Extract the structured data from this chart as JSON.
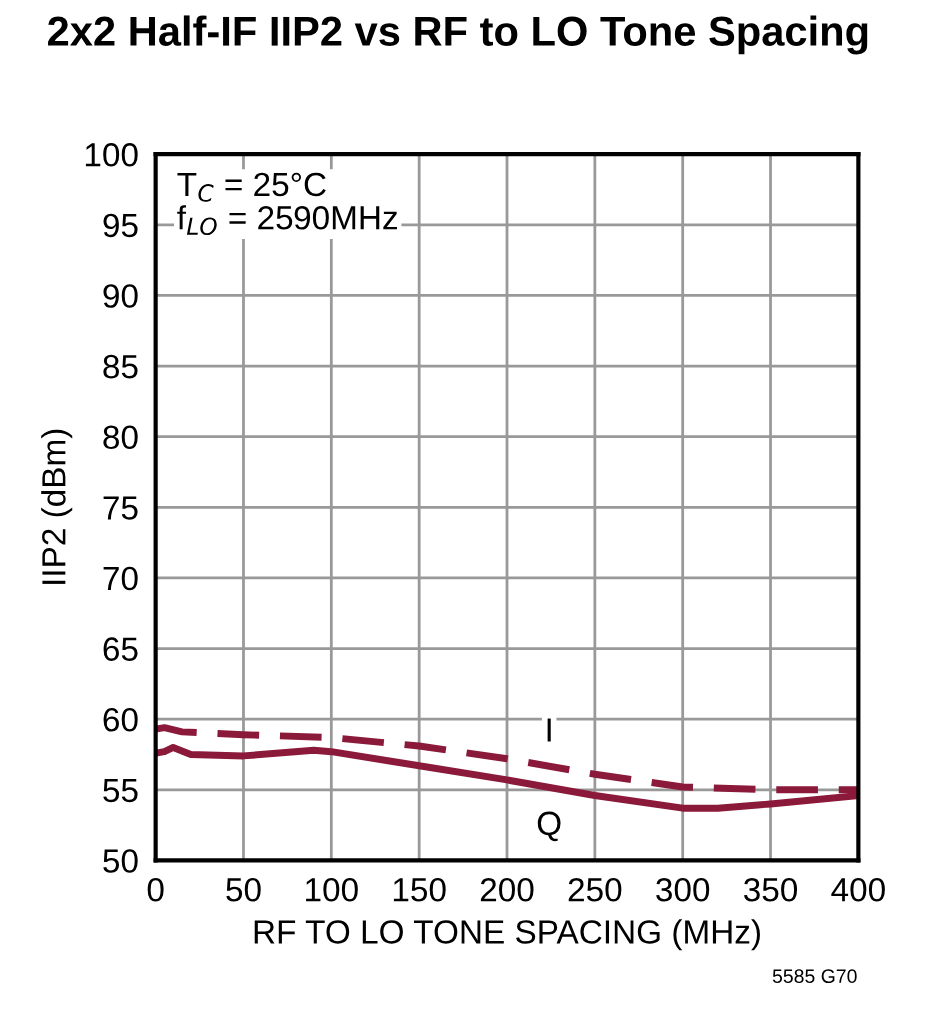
{
  "chart_data": {
    "type": "line",
    "title": "2x2 Half-IF IIP2 vs RF to LO Tone Spacing",
    "xlabel": "RF TO LO TONE SPACING (MHz)",
    "ylabel": "IIP2 (dBm)",
    "annotations": [
      "T$_{C}$ = 25°C\nf$_{LO}$ = 2590MHz",
      "5585 G70"
    ],
    "series": [
      {
        "name": "I",
        "color": "#8b1a3a",
        "line_style": "dashed",
        "x": [
          0,
          5,
          15,
          50,
          100,
          150,
          200,
          250,
          300,
          350,
          400
        ],
        "values": [
          59.3,
          59.4,
          59.1,
          58.9,
          58.7,
          58.1,
          57.2,
          56.1,
          55.2,
          55.0,
          55.0
        ]
      },
      {
        "name": "Q",
        "color": "#8b1a3a",
        "line_style": "solid",
        "x": [
          0,
          5,
          10,
          20,
          50,
          90,
          100,
          150,
          200,
          250,
          300,
          320,
          350,
          400
        ],
        "values": [
          57.6,
          57.7,
          58.0,
          57.5,
          57.4,
          57.8,
          57.7,
          56.7,
          55.7,
          54.6,
          53.7,
          53.7,
          54.0,
          54.6
        ]
      }
    ],
    "xlim": [
      0,
      400
    ],
    "xticks": [
      0,
      50,
      100,
      150,
      200,
      250,
      300,
      350,
      400
    ],
    "ylim": [
      50,
      100
    ],
    "yticks": [
      50,
      55,
      60,
      65,
      70,
      75,
      80,
      85,
      90,
      95,
      100
    ],
    "grid": true,
    "legend": false,
    "marker": "none"
  }
}
